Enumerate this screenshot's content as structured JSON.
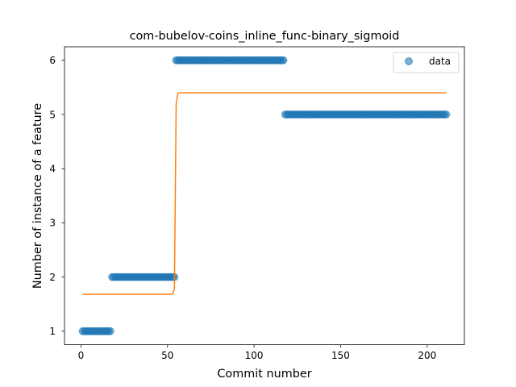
{
  "chart_data": {
    "type": "scatter",
    "title": "com-bubelov-coins_inline_func-binary_sigmoid",
    "xlabel": "Commit number",
    "ylabel": "Number of instance of a feature",
    "xlim": [
      -9.5,
      221.5
    ],
    "ylim": [
      0.75,
      6.25
    ],
    "xticks": [
      0,
      50,
      100,
      150,
      200
    ],
    "yticks": [
      1,
      2,
      3,
      4,
      5,
      6
    ],
    "legend": {
      "position": "top-right",
      "entries": [
        "data"
      ]
    },
    "grid": false,
    "series": [
      {
        "name": "data",
        "kind": "scatter",
        "color": "#1f77b4",
        "alpha": 0.6,
        "segments": [
          {
            "x_start": 1,
            "x_end": 17,
            "y": 1
          },
          {
            "x_start": 18,
            "x_end": 54,
            "y": 2
          },
          {
            "x_start": 55,
            "x_end": 117,
            "y": 6
          },
          {
            "x_start": 118,
            "x_end": 211,
            "y": 5
          }
        ]
      },
      {
        "name": "",
        "kind": "line",
        "color": "#ff7f0e",
        "points": [
          [
            1,
            1.68
          ],
          [
            52,
            1.68
          ],
          [
            53,
            1.69
          ],
          [
            54,
            1.78
          ],
          [
            54.5,
            3.5
          ],
          [
            55,
            5.2
          ],
          [
            56,
            5.39
          ],
          [
            57,
            5.4
          ],
          [
            211,
            5.4
          ]
        ]
      }
    ]
  }
}
